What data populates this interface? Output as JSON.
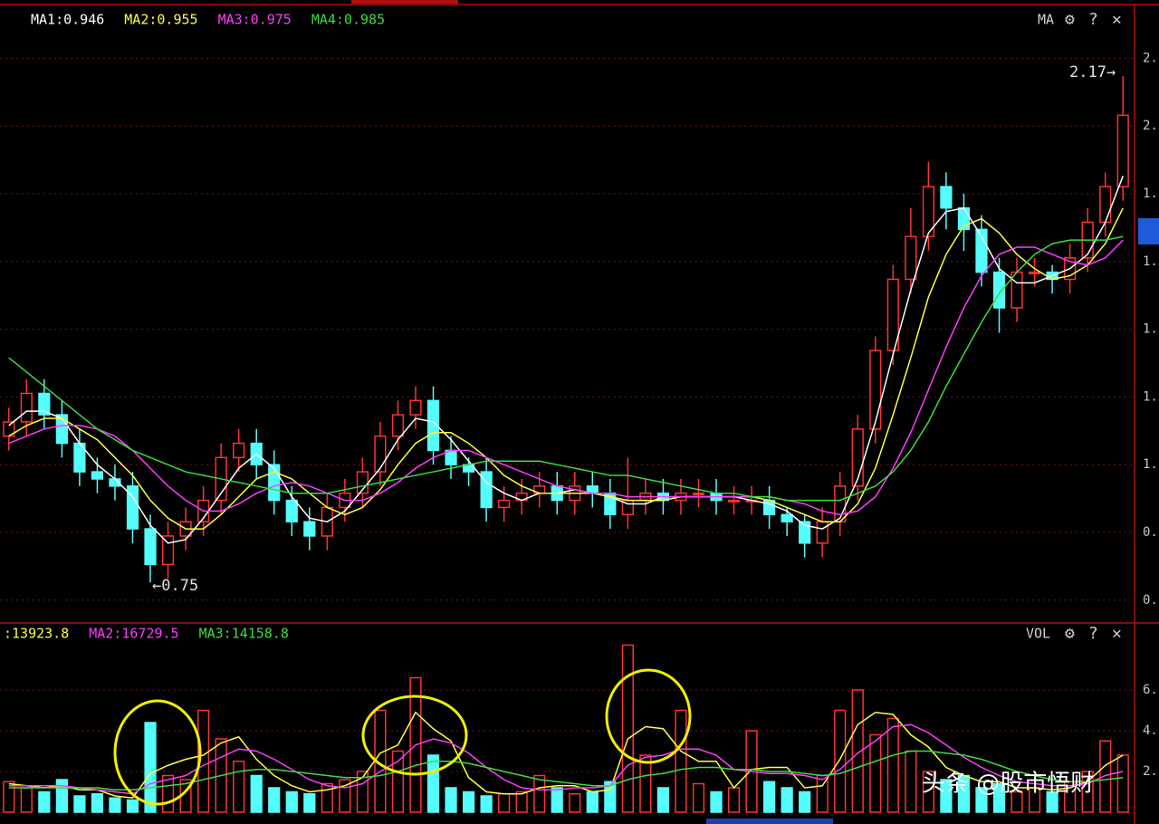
{
  "chart_data": [
    {
      "type": "candlestick",
      "up_color": "#ff3232",
      "down_color": "#54fcfc",
      "open": [
        1.16,
        1.2,
        1.28,
        1.22,
        1.14,
        1.06,
        1.04,
        1.02,
        0.9,
        0.8,
        0.88,
        0.92,
        0.98,
        1.1,
        1.14,
        1.08,
        0.98,
        0.92,
        0.88,
        0.96,
        1.0,
        1.06,
        1.16,
        1.22,
        1.26,
        1.12,
        1.08,
        1.06,
        0.96,
        0.98,
        1.0,
        1.02,
        0.98,
        1.02,
        1.0,
        0.94,
        0.98,
        1.0,
        0.98,
        1.0,
        1.0,
        0.98,
        0.98,
        0.98,
        0.94,
        0.92,
        0.86,
        0.92,
        1.02,
        1.18,
        1.4,
        1.6,
        1.72,
        1.86,
        1.8,
        1.74,
        1.62,
        1.52,
        1.62,
        1.62,
        1.6,
        1.66,
        1.76,
        1.86
      ],
      "high": [
        1.24,
        1.32,
        1.32,
        1.26,
        1.18,
        1.1,
        1.08,
        1.06,
        0.94,
        0.92,
        0.96,
        1.02,
        1.14,
        1.18,
        1.18,
        1.12,
        1.02,
        0.96,
        1.0,
        1.04,
        1.1,
        1.2,
        1.26,
        1.3,
        1.3,
        1.16,
        1.1,
        1.1,
        1.02,
        1.04,
        1.06,
        1.06,
        1.06,
        1.06,
        1.04,
        1.1,
        1.04,
        1.04,
        1.04,
        1.04,
        1.04,
        1.02,
        1.02,
        1.02,
        0.96,
        0.94,
        0.96,
        1.06,
        1.22,
        1.44,
        1.64,
        1.8,
        1.93,
        1.9,
        1.84,
        1.78,
        1.66,
        1.66,
        1.66,
        1.64,
        1.7,
        1.8,
        1.9,
        2.17
      ],
      "low": [
        1.12,
        1.16,
        1.18,
        1.1,
        1.02,
        1.0,
        0.98,
        0.86,
        0.75,
        0.76,
        0.84,
        0.88,
        0.94,
        1.06,
        1.04,
        0.94,
        0.88,
        0.84,
        0.84,
        0.92,
        0.96,
        1.02,
        1.12,
        1.18,
        1.08,
        1.04,
        1.02,
        0.92,
        0.92,
        0.94,
        0.96,
        0.94,
        0.94,
        0.96,
        0.9,
        0.9,
        0.94,
        0.94,
        0.94,
        0.96,
        0.94,
        0.94,
        0.94,
        0.9,
        0.88,
        0.82,
        0.82,
        0.88,
        0.98,
        1.14,
        1.36,
        1.56,
        1.68,
        1.74,
        1.68,
        1.58,
        1.45,
        1.48,
        1.58,
        1.56,
        1.56,
        1.62,
        1.72,
        1.82
      ],
      "close": [
        1.2,
        1.28,
        1.22,
        1.14,
        1.06,
        1.04,
        1.02,
        0.9,
        0.8,
        0.88,
        0.92,
        0.98,
        1.1,
        1.14,
        1.08,
        0.98,
        0.92,
        0.88,
        0.96,
        1.0,
        1.06,
        1.16,
        1.22,
        1.26,
        1.12,
        1.08,
        1.06,
        0.96,
        0.98,
        1.0,
        1.02,
        0.98,
        1.02,
        1.0,
        0.94,
        0.98,
        1.0,
        0.98,
        1.0,
        1.0,
        0.98,
        0.98,
        0.98,
        0.94,
        0.92,
        0.86,
        0.92,
        1.02,
        1.18,
        1.4,
        1.6,
        1.72,
        1.86,
        1.8,
        1.74,
        1.62,
        1.52,
        1.62,
        1.62,
        1.6,
        1.66,
        1.76,
        1.86,
        2.06
      ],
      "series": [
        {
          "name": "MA1:0.946",
          "color": "#ffffff",
          "values": [
            1.19,
            1.23,
            1.23,
            1.21,
            1.14,
            1.08,
            1.04,
            0.99,
            0.91,
            0.86,
            0.87,
            0.93,
            1.0,
            1.07,
            1.11,
            1.07,
            0.99,
            0.93,
            0.92,
            0.95,
            1.01,
            1.07,
            1.15,
            1.21,
            1.2,
            1.15,
            1.09,
            1.03,
            1.0,
            0.98,
            1.0,
            1.0,
            1.01,
            1.0,
            0.99,
            0.97,
            0.97,
            0.99,
            0.99,
            0.99,
            0.99,
            0.99,
            0.98,
            0.97,
            0.95,
            0.91,
            0.9,
            0.93,
            1.04,
            1.2,
            1.39,
            1.57,
            1.73,
            1.79,
            1.8,
            1.72,
            1.63,
            1.59,
            1.59,
            1.61,
            1.63,
            1.67,
            1.76,
            1.89
          ]
        },
        {
          "name": "MA2:0.955",
          "color": "#ffff3c",
          "values": [
            1.16,
            1.19,
            1.21,
            1.21,
            1.18,
            1.15,
            1.1,
            1.05,
            0.98,
            0.93,
            0.9,
            0.9,
            0.94,
            0.99,
            1.04,
            1.06,
            1.04,
            1.0,
            0.96,
            0.94,
            0.96,
            1.01,
            1.08,
            1.14,
            1.17,
            1.17,
            1.14,
            1.1,
            1.05,
            1.02,
            1.0,
            1.0,
            1.0,
            1.0,
            0.99,
            0.98,
            0.98,
            0.98,
            0.99,
            0.99,
            0.99,
            0.99,
            0.99,
            0.98,
            0.96,
            0.94,
            0.92,
            0.92,
            0.97,
            1.07,
            1.22,
            1.38,
            1.55,
            1.67,
            1.75,
            1.77,
            1.73,
            1.67,
            1.63,
            1.6,
            1.61,
            1.64,
            1.7,
            1.8
          ]
        },
        {
          "name": "MA3:0.975",
          "color": "#ff3cff",
          "values": [
            1.14,
            1.16,
            1.18,
            1.19,
            1.19,
            1.18,
            1.16,
            1.12,
            1.07,
            1.02,
            0.98,
            0.95,
            0.95,
            0.97,
            1.0,
            1.02,
            1.03,
            1.02,
            1.0,
            0.98,
            0.98,
            1.0,
            1.03,
            1.07,
            1.1,
            1.12,
            1.12,
            1.1,
            1.08,
            1.06,
            1.04,
            1.02,
            1.01,
            1.0,
            1.0,
            0.99,
            0.99,
            0.99,
            0.99,
            0.99,
            0.99,
            0.99,
            0.99,
            0.99,
            0.98,
            0.97,
            0.95,
            0.94,
            0.95,
            0.99,
            1.07,
            1.17,
            1.29,
            1.41,
            1.52,
            1.61,
            1.67,
            1.69,
            1.69,
            1.67,
            1.65,
            1.64,
            1.66,
            1.71
          ]
        },
        {
          "name": "MA4:0.985",
          "color": "#3cdc3c",
          "values": [
            1.38,
            1.34,
            1.3,
            1.26,
            1.22,
            1.18,
            1.15,
            1.12,
            1.1,
            1.08,
            1.06,
            1.05,
            1.04,
            1.03,
            1.02,
            1.01,
            1.0,
            1.0,
            1.0,
            1.01,
            1.02,
            1.03,
            1.04,
            1.05,
            1.06,
            1.07,
            1.08,
            1.09,
            1.09,
            1.09,
            1.09,
            1.08,
            1.07,
            1.06,
            1.05,
            1.05,
            1.04,
            1.03,
            1.02,
            1.01,
            1.0,
            1.0,
            0.99,
            0.99,
            0.98,
            0.98,
            0.98,
            0.98,
            1.0,
            1.02,
            1.06,
            1.12,
            1.2,
            1.3,
            1.39,
            1.48,
            1.56,
            1.62,
            1.67,
            1.7,
            1.71,
            1.71,
            1.71,
            1.72
          ]
        }
      ],
      "ylim": [
        0.636,
        2.287
      ],
      "yticks": [
        {
          "value": 2.22,
          "label": "2."
        },
        {
          "value": 2.03,
          "label": "2."
        },
        {
          "value": 1.84,
          "label": "1."
        },
        {
          "value": 1.65,
          "label": "1."
        },
        {
          "value": 1.46,
          "label": "1."
        },
        {
          "value": 1.27,
          "label": "1."
        },
        {
          "value": 1.08,
          "label": "1."
        },
        {
          "value": 0.89,
          "label": "0."
        },
        {
          "value": 0.7,
          "label": "0."
        }
      ],
      "grid": true,
      "indicator": "MA",
      "icons": [
        "⚙",
        "?",
        "✕"
      ],
      "annotations": [
        {
          "text": "2.17→",
          "value": 2.17,
          "index": 63
        },
        {
          "text": "←0.75",
          "value": 0.75,
          "index": 8
        }
      ]
    },
    {
      "type": "bar",
      "values": [
        1.5,
        1.2,
        1.0,
        1.6,
        0.8,
        0.9,
        0.7,
        0.6,
        4.4,
        1.8,
        1.6,
        5.0,
        3.6,
        2.5,
        1.8,
        1.2,
        1.0,
        0.9,
        1.4,
        1.6,
        2.0,
        5.0,
        3.0,
        6.6,
        2.8,
        1.2,
        1.0,
        0.8,
        0.9,
        1.0,
        1.8,
        1.2,
        0.9,
        1.0,
        1.5,
        8.2,
        2.8,
        1.2,
        5.0,
        1.4,
        1.0,
        1.2,
        4.0,
        1.5,
        1.2,
        1.0,
        1.8,
        5.0,
        6.0,
        3.8,
        4.6,
        3.0,
        2.0,
        1.6,
        1.8,
        1.2,
        1.4,
        1.0,
        1.2,
        1.0,
        1.5,
        2.0,
        3.5,
        2.8
      ],
      "series": [
        {
          "name": ":13923.8",
          "color": "#ffff3c",
          "values": [
            1.4,
            1.3,
            1.2,
            1.3,
            1.1,
            1.1,
            0.8,
            0.7,
            1.9,
            2.3,
            2.6,
            2.8,
            3.4,
            3.7,
            2.6,
            1.8,
            1.3,
            1.0,
            1.1,
            1.3,
            1.7,
            2.9,
            3.3,
            4.9,
            4.1,
            3.5,
            1.7,
            1.0,
            0.9,
            0.9,
            1.2,
            1.3,
            1.3,
            1.0,
            1.1,
            3.6,
            4.2,
            4.1,
            3.0,
            2.5,
            2.5,
            1.2,
            2.1,
            2.2,
            2.2,
            1.2,
            1.3,
            2.6,
            4.3,
            4.9,
            4.8,
            3.8,
            3.2,
            2.2,
            1.8,
            1.5,
            1.5,
            1.2,
            1.2,
            1.1,
            1.2,
            1.5,
            2.3,
            2.8
          ]
        },
        {
          "name": "MA2:16729.5",
          "color": "#ff3cff",
          "values": [
            1.3,
            1.3,
            1.3,
            1.3,
            1.2,
            1.1,
            1.0,
            0.9,
            1.4,
            1.6,
            1.8,
            2.3,
            2.7,
            3.1,
            3.0,
            2.6,
            2.1,
            1.6,
            1.3,
            1.2,
            1.4,
            2.0,
            2.5,
            3.3,
            3.6,
            3.4,
            2.9,
            2.2,
            1.6,
            1.2,
            1.1,
            1.1,
            1.2,
            1.2,
            1.3,
            2.3,
            2.7,
            2.8,
            3.1,
            3.1,
            2.8,
            2.1,
            2.0,
            1.9,
            1.9,
            1.8,
            1.6,
            2.1,
            2.9,
            3.5,
            4.2,
            4.3,
            3.9,
            3.3,
            2.7,
            2.2,
            1.8,
            1.5,
            1.4,
            1.3,
            1.3,
            1.4,
            1.8,
            2.0
          ]
        },
        {
          "name": "MA3:14158.8",
          "color": "#3cdc3c",
          "values": [
            1.2,
            1.2,
            1.2,
            1.2,
            1.2,
            1.2,
            1.1,
            1.1,
            1.2,
            1.3,
            1.4,
            1.6,
            1.8,
            2.0,
            2.1,
            2.1,
            2.0,
            1.9,
            1.8,
            1.7,
            1.7,
            1.8,
            2.0,
            2.3,
            2.5,
            2.5,
            2.4,
            2.2,
            2.0,
            1.8,
            1.6,
            1.5,
            1.4,
            1.3,
            1.3,
            1.6,
            1.8,
            1.9,
            2.1,
            2.2,
            2.2,
            2.1,
            2.1,
            2.0,
            2.0,
            1.9,
            1.8,
            1.9,
            2.2,
            2.5,
            2.8,
            3.0,
            3.0,
            2.9,
            2.8,
            2.6,
            2.3,
            2.0,
            1.8,
            1.6,
            1.5,
            1.5,
            1.6,
            1.7
          ]
        }
      ],
      "ylim": [
        0,
        9.2
      ],
      "yticks": [
        {
          "value": 6,
          "label": "6."
        },
        {
          "value": 4,
          "label": "4."
        },
        {
          "value": 2,
          "label": "2."
        }
      ],
      "grid": true,
      "indicator": "VOL",
      "icons": [
        "⚙",
        "?",
        "✕"
      ]
    }
  ],
  "watermark": "头条 @股市悟财"
}
